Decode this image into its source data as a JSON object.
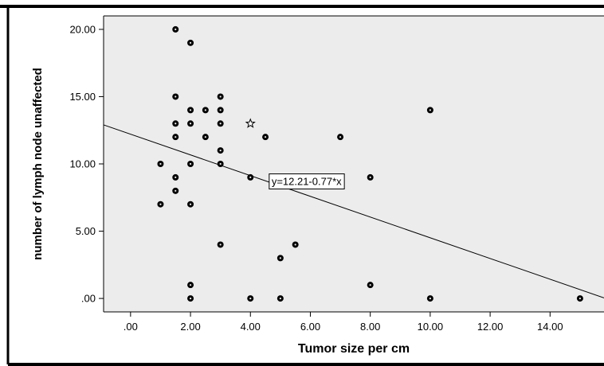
{
  "chart_data": {
    "type": "scatter",
    "title": "",
    "xlabel": "Tumor size  per cm",
    "ylabel": "number of  lymph node unaffected",
    "xlim": [
      -0.9,
      15.8
    ],
    "ylim": [
      -1.0,
      21.0
    ],
    "x_ticks": [
      {
        "value": 0,
        "label": ".00"
      },
      {
        "value": 2,
        "label": "2.00"
      },
      {
        "value": 4,
        "label": "4.00"
      },
      {
        "value": 6,
        "label": "6.00"
      },
      {
        "value": 8,
        "label": "8.00"
      },
      {
        "value": 10,
        "label": "10.00"
      },
      {
        "value": 12,
        "label": "12.00"
      },
      {
        "value": 14,
        "label": "14.00"
      }
    ],
    "y_ticks": [
      {
        "value": 0,
        "label": ".00"
      },
      {
        "value": 5,
        "label": "5.00"
      },
      {
        "value": 10,
        "label": "10.00"
      },
      {
        "value": 15,
        "label": "15.00"
      },
      {
        "value": 20,
        "label": "20.00"
      }
    ],
    "grid": false,
    "background_color": "#ececec",
    "marker_color": "#000000",
    "points": [
      {
        "x": 1.5,
        "y": 20
      },
      {
        "x": 2,
        "y": 19
      },
      {
        "x": 1.5,
        "y": 15
      },
      {
        "x": 3,
        "y": 15
      },
      {
        "x": 2,
        "y": 14
      },
      {
        "x": 2.5,
        "y": 14
      },
      {
        "x": 3,
        "y": 14
      },
      {
        "x": 10,
        "y": 14
      },
      {
        "x": 1.5,
        "y": 13
      },
      {
        "x": 2,
        "y": 13
      },
      {
        "x": 3,
        "y": 13
      },
      {
        "x": 4,
        "y": 13,
        "marker": "star"
      },
      {
        "x": 1.5,
        "y": 12
      },
      {
        "x": 2.5,
        "y": 12
      },
      {
        "x": 4.5,
        "y": 12
      },
      {
        "x": 7,
        "y": 12
      },
      {
        "x": 3,
        "y": 11
      },
      {
        "x": 1,
        "y": 10
      },
      {
        "x": 2,
        "y": 10
      },
      {
        "x": 3,
        "y": 10
      },
      {
        "x": 1.5,
        "y": 9
      },
      {
        "x": 4,
        "y": 9
      },
      {
        "x": 5,
        "y": 9
      },
      {
        "x": 8,
        "y": 9
      },
      {
        "x": 1.5,
        "y": 8
      },
      {
        "x": 1,
        "y": 7
      },
      {
        "x": 2,
        "y": 7
      },
      {
        "x": 3,
        "y": 4
      },
      {
        "x": 5.5,
        "y": 4
      },
      {
        "x": 5,
        "y": 3
      },
      {
        "x": 2,
        "y": 1
      },
      {
        "x": 8,
        "y": 1
      },
      {
        "x": 2,
        "y": 0
      },
      {
        "x": 4,
        "y": 0
      },
      {
        "x": 5,
        "y": 0
      },
      {
        "x": 10,
        "y": 0
      },
      {
        "x": 15,
        "y": 0
      }
    ],
    "fit_line": {
      "equation": "y=12.21-0.77*x",
      "intercept": 12.21,
      "slope": -0.77,
      "label_x": 4.6
    }
  }
}
